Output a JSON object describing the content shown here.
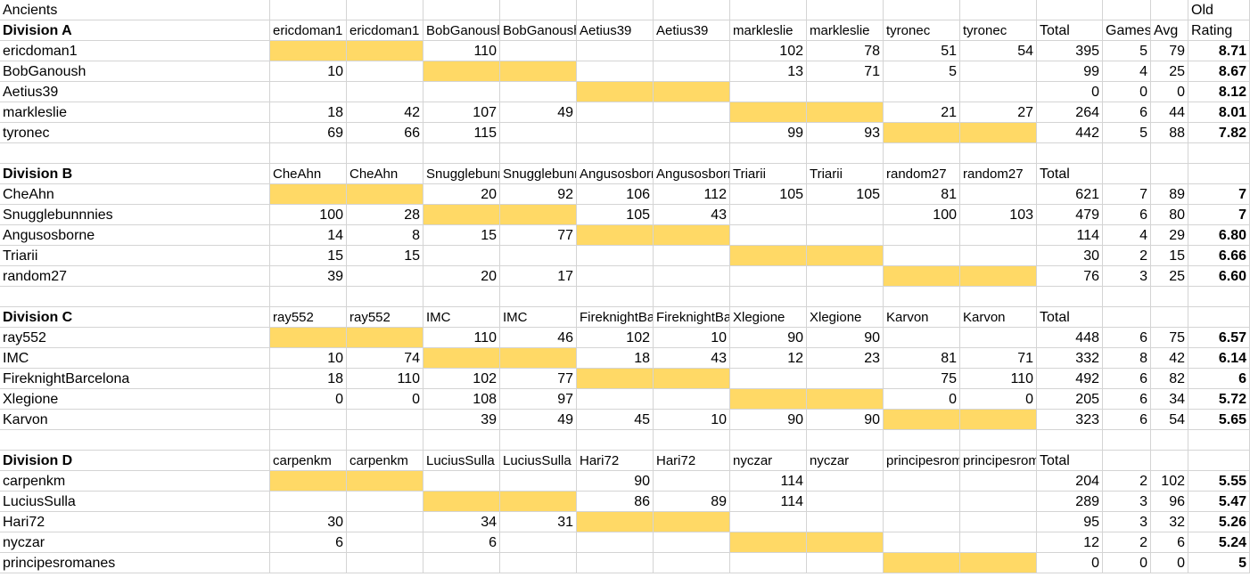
{
  "sheet_title": "Ancients",
  "rating_header_top": "Old",
  "rating_header": "Rating",
  "games_header": "Games",
  "avg_header": "Avg",
  "total_header": "Total",
  "fill_color": "#ffd966",
  "divisions": [
    {
      "name": "Division A",
      "columns": [
        "ericdoman1",
        "ericdoman1",
        "BobGanoush",
        "BobGanoush",
        "Aetius39",
        "Aetius39",
        "markleslie",
        "markleslie",
        "tyronec",
        "tyronec"
      ],
      "players": [
        {
          "name": "ericdoman1",
          "cells": [
            "",
            "",
            "110",
            "",
            "",
            "",
            "102",
            "78",
            "51",
            "54"
          ],
          "total": "395",
          "games": "5",
          "avg": "79",
          "rating": "8.71"
        },
        {
          "name": "BobGanoush",
          "cells": [
            "10",
            "",
            "",
            "",
            "",
            "",
            "13",
            "71",
            "5",
            ""
          ],
          "total": "99",
          "games": "4",
          "avg": "25",
          "rating": "8.67"
        },
        {
          "name": "Aetius39",
          "cells": [
            "",
            "",
            "",
            "",
            "",
            "",
            "",
            "",
            "",
            ""
          ],
          "total": "0",
          "games": "0",
          "avg": "0",
          "rating": "8.12"
        },
        {
          "name": "markleslie",
          "cells": [
            "18",
            "42",
            "107",
            "49",
            "",
            "",
            "",
            "",
            "21",
            "27"
          ],
          "total": "264",
          "games": "6",
          "avg": "44",
          "rating": "8.01"
        },
        {
          "name": "tyronec",
          "cells": [
            "69",
            "66",
            "115",
            "",
            "",
            "",
            "99",
            "93",
            "",
            ""
          ],
          "total": "442",
          "games": "5",
          "avg": "88",
          "rating": "7.82"
        }
      ]
    },
    {
      "name": "Division B",
      "columns": [
        "CheAhn",
        "CheAhn",
        "Snugglebunnnies",
        "Snugglebunnnies",
        "Angusosborne",
        "Angusosborne",
        "Triarii",
        "Triarii",
        "random27",
        "random27"
      ],
      "players": [
        {
          "name": "CheAhn",
          "cells": [
            "",
            "",
            "20",
            "92",
            "106",
            "112",
            "105",
            "105",
            "81",
            ""
          ],
          "total": "621",
          "games": "7",
          "avg": "89",
          "rating": "7"
        },
        {
          "name": "Snugglebunnnies",
          "cells": [
            "100",
            "28",
            "",
            "",
            "105",
            "43",
            "",
            "",
            "100",
            "103"
          ],
          "total": "479",
          "games": "6",
          "avg": "80",
          "rating": "7"
        },
        {
          "name": "Angusosborne",
          "cells": [
            "14",
            "8",
            "15",
            "77",
            "",
            "",
            "",
            "",
            "",
            ""
          ],
          "total": "114",
          "games": "4",
          "avg": "29",
          "rating": "6.80"
        },
        {
          "name": "Triarii",
          "cells": [
            "15",
            "15",
            "",
            "",
            "",
            "",
            "",
            "",
            "",
            ""
          ],
          "total": "30",
          "games": "2",
          "avg": "15",
          "rating": "6.66"
        },
        {
          "name": "random27",
          "cells": [
            "39",
            "",
            "20",
            "17",
            "",
            "",
            "",
            "",
            "",
            ""
          ],
          "total": "76",
          "games": "3",
          "avg": "25",
          "rating": "6.60"
        }
      ]
    },
    {
      "name": "Division C",
      "columns": [
        "ray552",
        "ray552",
        "IMC",
        "IMC",
        "FireknightBarcelona",
        "FireknightBarcelona",
        "Xlegione",
        "Xlegione",
        "Karvon",
        "Karvon"
      ],
      "players": [
        {
          "name": "ray552",
          "cells": [
            "",
            "",
            "110",
            "46",
            "102",
            "10",
            "90",
            "90",
            "",
            ""
          ],
          "total": "448",
          "games": "6",
          "avg": "75",
          "rating": "6.57"
        },
        {
          "name": "IMC",
          "cells": [
            "10",
            "74",
            "",
            "",
            "18",
            "43",
            "12",
            "23",
            "81",
            "71"
          ],
          "total": "332",
          "games": "8",
          "avg": "42",
          "rating": "6.14"
        },
        {
          "name": "FireknightBarcelona",
          "cells": [
            "18",
            "110",
            "102",
            "77",
            "",
            "",
            "",
            "",
            "75",
            "110"
          ],
          "total": "492",
          "games": "6",
          "avg": "82",
          "rating": "6"
        },
        {
          "name": "Xlegione",
          "cells": [
            "0",
            "0",
            "108",
            "97",
            "",
            "",
            "",
            "",
            "0",
            "0"
          ],
          "total": "205",
          "games": "6",
          "avg": "34",
          "rating": "5.72"
        },
        {
          "name": "Karvon",
          "cells": [
            "",
            "",
            "39",
            "49",
            "45",
            "10",
            "90",
            "90",
            "",
            ""
          ],
          "total": "323",
          "games": "6",
          "avg": "54",
          "rating": "5.65"
        }
      ]
    },
    {
      "name": "Division D",
      "columns": [
        "carpenkm",
        "carpenkm",
        "LuciusSulla",
        "LuciusSulla",
        "Hari72",
        "Hari72",
        "nyczar",
        "nyczar",
        "principesromanes",
        "principesromanes"
      ],
      "players": [
        {
          "name": "carpenkm",
          "cells": [
            "",
            "",
            "",
            "",
            "90",
            "",
            "114",
            "",
            "",
            ""
          ],
          "total": "204",
          "games": "2",
          "avg": "102",
          "rating": "5.55"
        },
        {
          "name": "LuciusSulla",
          "cells": [
            "",
            "",
            "",
            "",
            "86",
            "89",
            "114",
            "",
            "",
            ""
          ],
          "total": "289",
          "games": "3",
          "avg": "96",
          "rating": "5.47"
        },
        {
          "name": "Hari72",
          "cells": [
            "30",
            "",
            "34",
            "31",
            "",
            "",
            "",
            "",
            "",
            ""
          ],
          "total": "95",
          "games": "3",
          "avg": "32",
          "rating": "5.26"
        },
        {
          "name": "nyczar",
          "cells": [
            "6",
            "",
            "6",
            "",
            "",
            "",
            "",
            "",
            "",
            ""
          ],
          "total": "12",
          "games": "2",
          "avg": "6",
          "rating": "5.24"
        },
        {
          "name": "principesromanes",
          "cells": [
            "",
            "",
            "",
            "",
            "",
            "",
            "",
            "",
            "",
            ""
          ],
          "total": "0",
          "games": "0",
          "avg": "0",
          "rating": "5"
        }
      ]
    }
  ]
}
